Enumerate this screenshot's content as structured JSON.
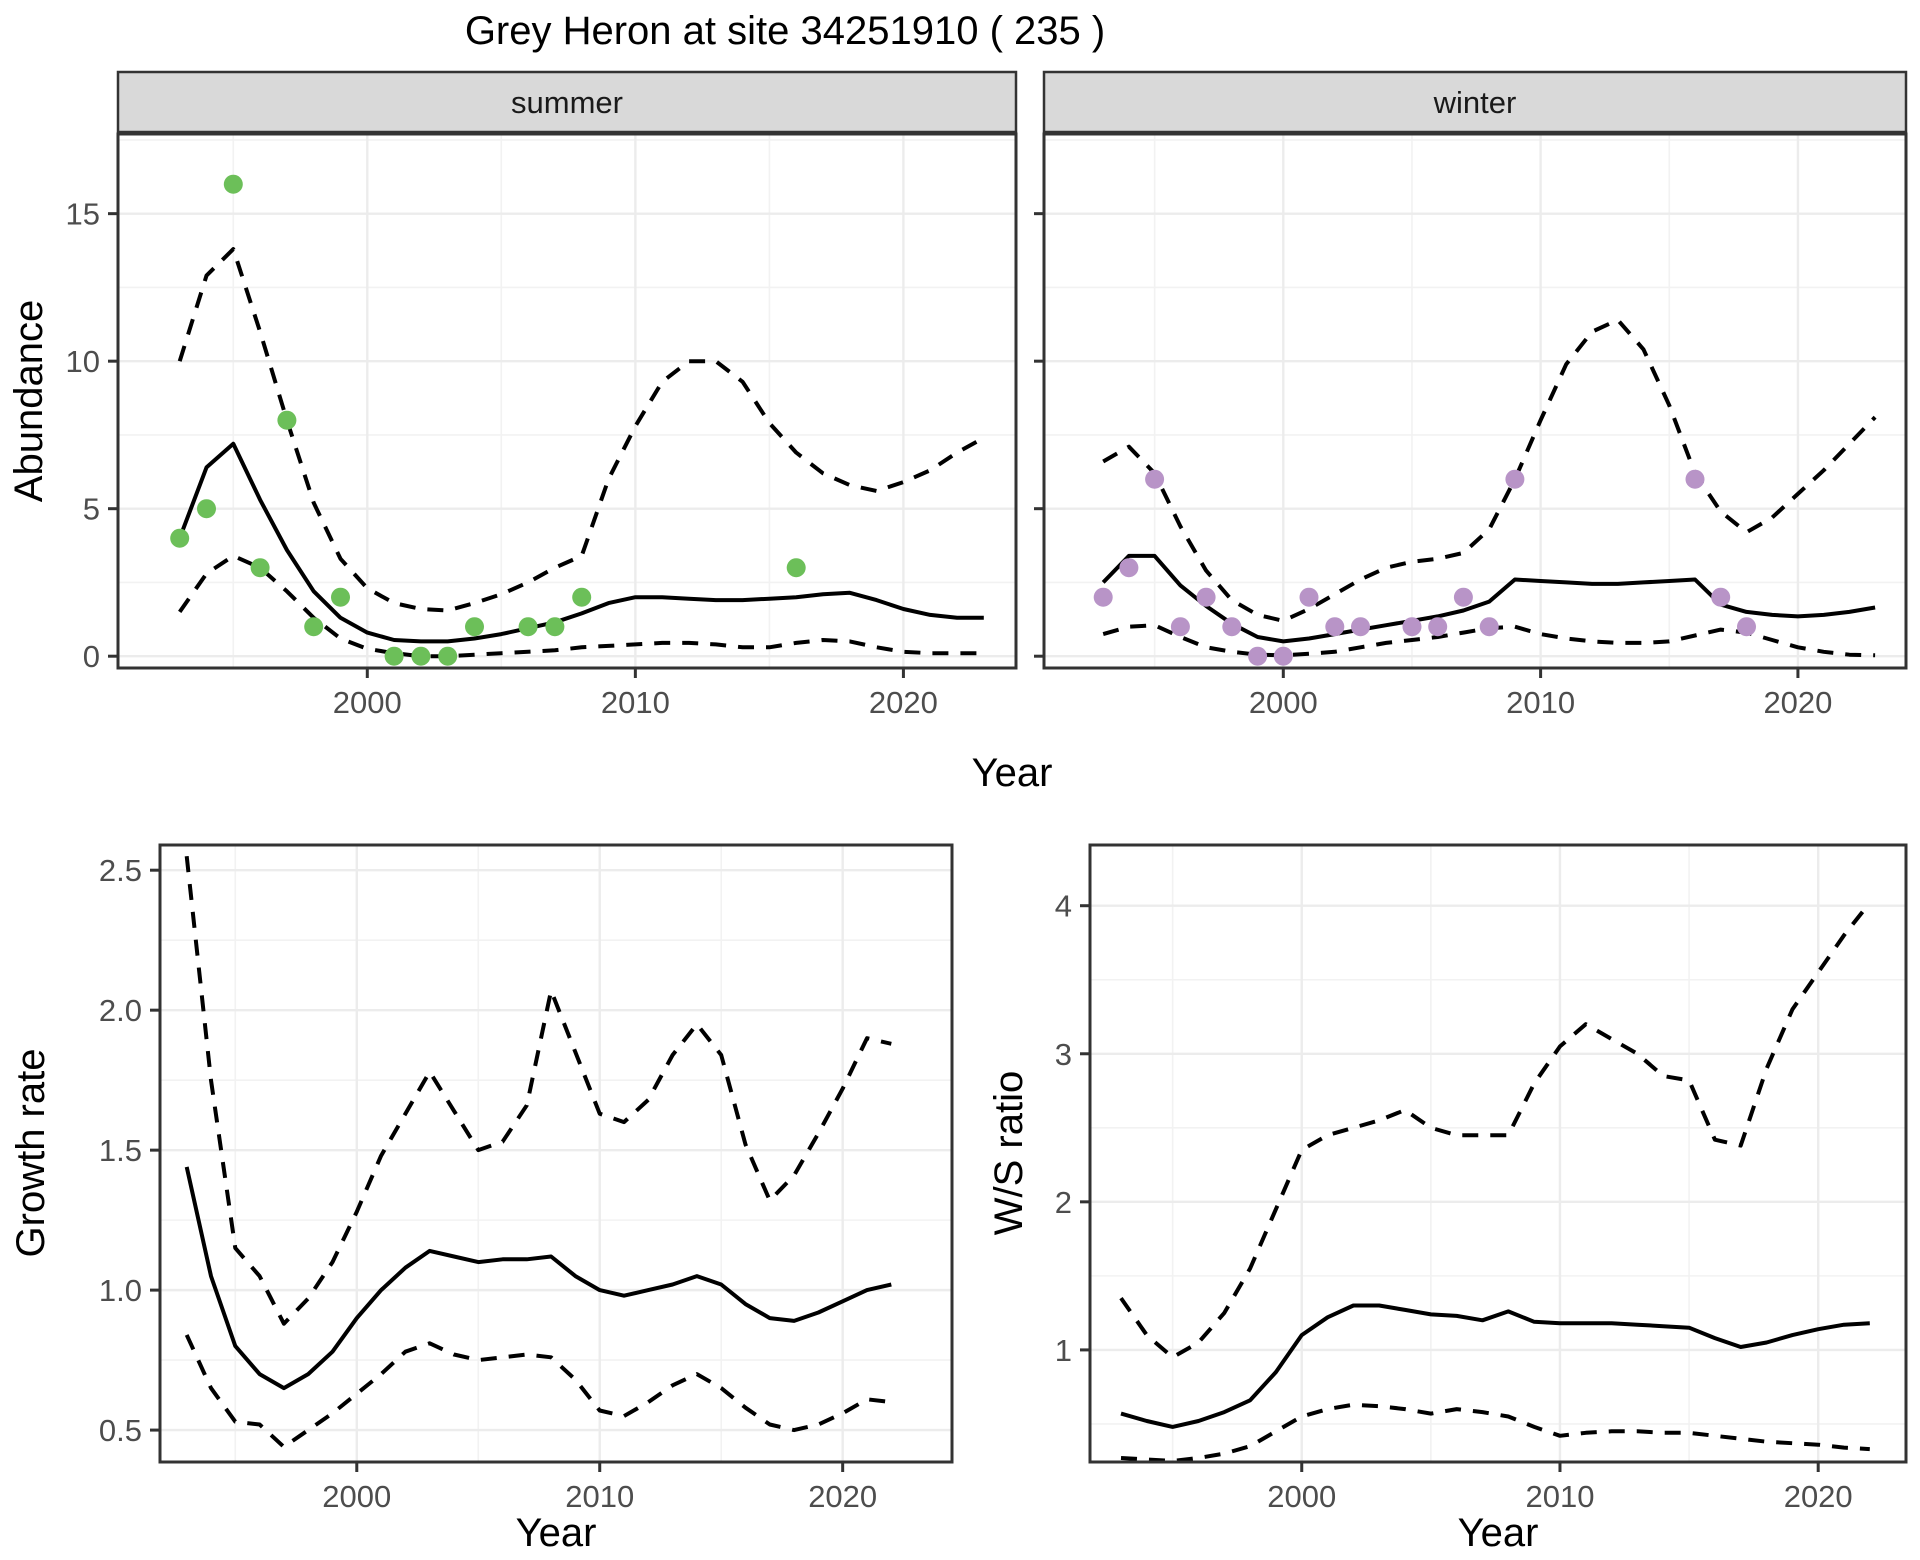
{
  "title": "Grey Heron at site 34251910 ( 235 )",
  "shared_x_label": "Year",
  "colors": {
    "background": "#ffffff",
    "line": "#000000",
    "grid_major": "#ececec",
    "grid_minor": "#f2f2f2",
    "strip_fill": "#d9d9d9",
    "strip_border": "#333333",
    "panel_border": "#333333",
    "axis_text": "#4d4d4d",
    "tick_mark": "#333333",
    "summer_point": "#6cbf59",
    "winter_point": "#b894c7"
  },
  "chart_data": [
    {
      "id": "summer_abundance",
      "type": "line",
      "facet_label": "summer",
      "xlabel": "Year",
      "ylabel": "Abundance",
      "xlim": [
        1990.7,
        2024.2
      ],
      "ylim": [
        -0.4,
        17.7
      ],
      "x_tick_values": [
        2000,
        2010,
        2020
      ],
      "x_tick_labels": [
        "2000",
        "2010",
        "2020"
      ],
      "x_minor": [
        1995,
        2005,
        2015
      ],
      "y_tick_values": [
        0,
        5,
        10,
        15
      ],
      "y_tick_labels": [
        "0",
        "5",
        "10",
        "15"
      ],
      "y_minor": [
        2.5,
        7.5,
        12.5,
        17.5
      ],
      "years": [
        1993,
        1994,
        1995,
        1996,
        1997,
        1998,
        1999,
        2000,
        2001,
        2002,
        2003,
        2004,
        2005,
        2006,
        2007,
        2008,
        2009,
        2010,
        2011,
        2012,
        2013,
        2014,
        2015,
        2016,
        2017,
        2018,
        2019,
        2020,
        2021,
        2022,
        2023
      ],
      "series": [
        {
          "name": "mean",
          "style": "solid",
          "values": [
            4.0,
            6.4,
            7.2,
            5.3,
            3.6,
            2.2,
            1.3,
            0.8,
            0.55,
            0.5,
            0.5,
            0.6,
            0.75,
            0.95,
            1.15,
            1.45,
            1.8,
            2.0,
            2.0,
            1.95,
            1.9,
            1.9,
            1.95,
            2.0,
            2.1,
            2.15,
            1.9,
            1.6,
            1.4,
            1.3,
            1.3
          ]
        },
        {
          "name": "upper_ci",
          "style": "dashed",
          "values": [
            10.0,
            12.9,
            13.8,
            11.0,
            8.0,
            5.2,
            3.3,
            2.3,
            1.8,
            1.6,
            1.55,
            1.8,
            2.1,
            2.5,
            3.0,
            3.4,
            6.0,
            7.8,
            9.3,
            10.0,
            10.0,
            9.3,
            7.9,
            6.9,
            6.2,
            5.8,
            5.6,
            5.9,
            6.3,
            6.9,
            7.4
          ]
        },
        {
          "name": "lower_ci",
          "style": "dashed",
          "values": [
            1.5,
            2.8,
            3.4,
            3.0,
            2.2,
            1.3,
            0.6,
            0.25,
            0.1,
            0.0,
            0.0,
            0.05,
            0.1,
            0.15,
            0.2,
            0.3,
            0.35,
            0.4,
            0.45,
            0.45,
            0.4,
            0.3,
            0.3,
            0.45,
            0.55,
            0.5,
            0.3,
            0.15,
            0.1,
            0.1,
            0.1
          ]
        }
      ],
      "points": {
        "name": "summer_observations",
        "color": "#6cbf59",
        "years": [
          1993,
          1994,
          1995,
          1996,
          1997,
          1998,
          1999,
          2001,
          2002,
          2003,
          2004,
          2006,
          2007,
          2008,
          2016
        ],
        "values": [
          4,
          5,
          16,
          3,
          8,
          1,
          2,
          0,
          0,
          0,
          1,
          1,
          1,
          2,
          3
        ]
      }
    },
    {
      "id": "winter_abundance",
      "type": "line",
      "facet_label": "winter",
      "xlabel": "Year",
      "ylabel": "Abundance",
      "xlim": [
        1990.7,
        2024.2
      ],
      "ylim": [
        -0.4,
        17.7
      ],
      "x_tick_values": [
        2000,
        2010,
        2020
      ],
      "x_tick_labels": [
        "2000",
        "2010",
        "2020"
      ],
      "x_minor": [
        1995,
        2005,
        2015
      ],
      "y_tick_values": [
        0,
        5,
        10,
        15
      ],
      "y_tick_labels": [
        "0",
        "5",
        "10",
        "15"
      ],
      "y_minor": [
        2.5,
        7.5,
        12.5,
        17.5
      ],
      "years": [
        1993,
        1994,
        1995,
        1996,
        1997,
        1998,
        1999,
        2000,
        2001,
        2002,
        2003,
        2004,
        2005,
        2006,
        2007,
        2008,
        2009,
        2010,
        2011,
        2012,
        2013,
        2014,
        2015,
        2016,
        2017,
        2018,
        2019,
        2020,
        2021,
        2022,
        2023
      ],
      "series": [
        {
          "name": "mean",
          "style": "solid",
          "values": [
            2.5,
            3.4,
            3.4,
            2.4,
            1.7,
            1.1,
            0.65,
            0.5,
            0.6,
            0.75,
            0.9,
            1.05,
            1.2,
            1.35,
            1.55,
            1.85,
            2.6,
            2.55,
            2.5,
            2.45,
            2.45,
            2.5,
            2.55,
            2.6,
            1.75,
            1.5,
            1.4,
            1.35,
            1.4,
            1.5,
            1.65
          ]
        },
        {
          "name": "upper_ci",
          "style": "dashed",
          "values": [
            6.6,
            7.1,
            6.2,
            4.4,
            2.9,
            1.9,
            1.4,
            1.2,
            1.6,
            2.1,
            2.6,
            3.0,
            3.2,
            3.3,
            3.5,
            4.3,
            6.0,
            8.0,
            9.9,
            11.0,
            11.4,
            10.4,
            8.5,
            6.2,
            4.9,
            4.2,
            4.7,
            5.5,
            6.3,
            7.2,
            8.1
          ]
        },
        {
          "name": "lower_ci",
          "style": "dashed",
          "values": [
            0.75,
            1.0,
            1.05,
            0.65,
            0.3,
            0.15,
            0.05,
            0.03,
            0.08,
            0.15,
            0.3,
            0.45,
            0.55,
            0.65,
            0.8,
            0.95,
            1.0,
            0.75,
            0.6,
            0.5,
            0.45,
            0.45,
            0.5,
            0.7,
            0.9,
            0.8,
            0.55,
            0.3,
            0.15,
            0.05,
            0.03
          ]
        }
      ],
      "points": {
        "name": "winter_observations",
        "color": "#b894c7",
        "years": [
          1993,
          1994,
          1995,
          1996,
          1997,
          1998,
          1999,
          2000,
          2001,
          2002,
          2003,
          2005,
          2006,
          2007,
          2008,
          2009,
          2016,
          2017,
          2018
        ],
        "values": [
          2,
          3,
          6,
          1,
          2,
          1,
          0,
          0,
          2,
          1,
          1,
          1,
          1,
          2,
          1,
          6,
          6,
          2,
          1
        ]
      }
    },
    {
      "id": "growth_rate",
      "type": "line",
      "facet_label": "",
      "xlabel": "Year",
      "ylabel": "Growth rate",
      "xlim": [
        1991.9,
        2024.5
      ],
      "ylim": [
        0.386,
        2.59
      ],
      "x_tick_values": [
        2000,
        2010,
        2020
      ],
      "x_tick_labels": [
        "2000",
        "2010",
        "2020"
      ],
      "x_minor": [
        1995,
        2005,
        2015
      ],
      "y_tick_values": [
        0.5,
        1.0,
        1.5,
        2.0,
        2.5
      ],
      "y_tick_labels": [
        "0.5",
        "1.0",
        "1.5",
        "2.0",
        "2.5"
      ],
      "y_minor": [
        0.75,
        1.25,
        1.75,
        2.25
      ],
      "years": [
        1993,
        1994,
        1995,
        1996,
        1997,
        1998,
        1999,
        2000,
        2001,
        2002,
        2003,
        2004,
        2005,
        2006,
        2007,
        2008,
        2009,
        2010,
        2011,
        2012,
        2013,
        2014,
        2015,
        2016,
        2017,
        2018,
        2019,
        2020,
        2021,
        2022
      ],
      "series": [
        {
          "name": "mean",
          "style": "solid",
          "values": [
            1.44,
            1.05,
            0.8,
            0.7,
            0.65,
            0.7,
            0.78,
            0.9,
            1.0,
            1.08,
            1.14,
            1.12,
            1.1,
            1.11,
            1.11,
            1.12,
            1.05,
            1.0,
            0.98,
            1.0,
            1.02,
            1.05,
            1.02,
            0.95,
            0.9,
            0.89,
            0.92,
            0.96,
            1.0,
            1.02
          ]
        },
        {
          "name": "upper_ci",
          "style": "dashed",
          "values": [
            2.55,
            1.75,
            1.15,
            1.05,
            0.88,
            0.97,
            1.1,
            1.28,
            1.48,
            1.63,
            1.78,
            1.64,
            1.5,
            1.53,
            1.66,
            2.07,
            1.85,
            1.63,
            1.6,
            1.68,
            1.84,
            1.95,
            1.84,
            1.52,
            1.32,
            1.41,
            1.56,
            1.72,
            1.9,
            1.88
          ]
        },
        {
          "name": "lower_ci",
          "style": "dashed",
          "values": [
            0.84,
            0.65,
            0.53,
            0.52,
            0.44,
            0.5,
            0.56,
            0.63,
            0.7,
            0.78,
            0.81,
            0.77,
            0.75,
            0.76,
            0.77,
            0.76,
            0.68,
            0.57,
            0.55,
            0.6,
            0.66,
            0.7,
            0.65,
            0.58,
            0.52,
            0.5,
            0.52,
            0.56,
            0.61,
            0.6
          ]
        }
      ],
      "points": null
    },
    {
      "id": "ws_ratio",
      "type": "line",
      "facet_label": "",
      "xlabel": "Year",
      "ylabel": "W/S ratio",
      "xlim": [
        1991.8,
        2023.4
      ],
      "ylim": [
        0.243,
        4.41
      ],
      "x_tick_values": [
        2000,
        2010,
        2020
      ],
      "x_tick_labels": [
        "2000",
        "2010",
        "2020"
      ],
      "x_minor": [
        1995,
        2005,
        2015
      ],
      "y_tick_values": [
        1,
        2,
        3,
        4
      ],
      "y_tick_labels": [
        "1",
        "2",
        "3",
        "4"
      ],
      "y_minor": [
        0.5,
        1.5,
        2.5,
        3.5
      ],
      "years": [
        1993,
        1994,
        1995,
        1996,
        1997,
        1998,
        1999,
        2000,
        2001,
        2002,
        2003,
        2004,
        2005,
        2006,
        2007,
        2008,
        2009,
        2010,
        2011,
        2012,
        2013,
        2014,
        2015,
        2016,
        2017,
        2018,
        2019,
        2020,
        2021,
        2022
      ],
      "series": [
        {
          "name": "mean",
          "style": "solid",
          "values": [
            0.57,
            0.52,
            0.48,
            0.52,
            0.58,
            0.66,
            0.85,
            1.1,
            1.22,
            1.3,
            1.3,
            1.27,
            1.24,
            1.23,
            1.2,
            1.26,
            1.19,
            1.18,
            1.18,
            1.18,
            1.17,
            1.16,
            1.15,
            1.08,
            1.02,
            1.05,
            1.1,
            1.14,
            1.17,
            1.18
          ]
        },
        {
          "name": "upper_ci",
          "style": "dashed",
          "values": [
            1.35,
            1.1,
            0.95,
            1.05,
            1.25,
            1.55,
            1.95,
            2.35,
            2.45,
            2.5,
            2.55,
            2.62,
            2.5,
            2.45,
            2.45,
            2.45,
            2.8,
            3.05,
            3.2,
            3.1,
            3.0,
            2.85,
            2.82,
            2.42,
            2.38,
            2.9,
            3.3,
            3.55,
            3.8,
            4.02
          ]
        },
        {
          "name": "lower_ci",
          "style": "dashed",
          "values": [
            0.27,
            0.26,
            0.25,
            0.27,
            0.3,
            0.35,
            0.45,
            0.55,
            0.6,
            0.63,
            0.62,
            0.6,
            0.57,
            0.6,
            0.58,
            0.55,
            0.48,
            0.42,
            0.44,
            0.45,
            0.45,
            0.44,
            0.44,
            0.42,
            0.4,
            0.38,
            0.37,
            0.36,
            0.34,
            0.33
          ]
        }
      ],
      "points": null
    }
  ]
}
